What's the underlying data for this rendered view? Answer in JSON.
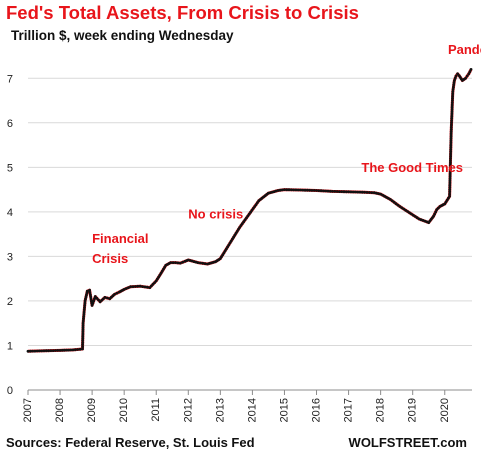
{
  "chart_data": {
    "type": "line",
    "title": "Fed's Total Assets, From Crisis to Crisis",
    "subtitle": "Trillion $, week ending Wednesday",
    "ylim": [
      0,
      7.5
    ],
    "xlim": [
      2007,
      2020.85
    ],
    "y_ticks": [
      "0",
      "1",
      "2",
      "3",
      "4",
      "5",
      "6",
      "7"
    ],
    "x_ticks": [
      "2007",
      "2008",
      "2009",
      "2010",
      "2011",
      "2012",
      "2013",
      "2014",
      "2015",
      "2016",
      "2017",
      "2018",
      "2019",
      "2020"
    ],
    "grid": "horizontal",
    "line_color": "#e8151b",
    "marker_color": "#111111",
    "series": [
      {
        "x": [
          2007.0,
          2007.5,
          2008.0,
          2008.4,
          2008.7,
          2008.72,
          2008.78,
          2008.85,
          2008.92,
          2009.0,
          2009.1,
          2009.25,
          2009.4,
          2009.55,
          2009.7,
          2009.85,
          2010.0,
          2010.2,
          2010.5,
          2010.8,
          2011.0,
          2011.15,
          2011.3,
          2011.45,
          2011.6,
          2011.75,
          2011.9,
          2012.0,
          2012.3,
          2012.6,
          2012.85,
          2013.0,
          2013.3,
          2013.6,
          2013.9,
          2014.2,
          2014.5,
          2014.8,
          2015.0,
          2015.5,
          2016.0,
          2016.5,
          2017.0,
          2017.5,
          2017.8,
          2018.0,
          2018.3,
          2018.6,
          2018.9,
          2019.2,
          2019.5,
          2019.65,
          2019.75,
          2019.85,
          2020.0,
          2020.15,
          2020.2,
          2020.25,
          2020.3,
          2020.35,
          2020.4,
          2020.45,
          2020.55,
          2020.65,
          2020.75,
          2020.82
        ],
        "y": [
          0.87,
          0.88,
          0.89,
          0.9,
          0.92,
          1.5,
          2.0,
          2.22,
          2.24,
          1.9,
          2.1,
          1.98,
          2.08,
          2.05,
          2.15,
          2.2,
          2.26,
          2.32,
          2.33,
          2.3,
          2.45,
          2.62,
          2.8,
          2.86,
          2.86,
          2.85,
          2.89,
          2.92,
          2.86,
          2.83,
          2.88,
          2.95,
          3.3,
          3.65,
          3.95,
          4.25,
          4.42,
          4.48,
          4.5,
          4.49,
          4.48,
          4.46,
          4.45,
          4.44,
          4.43,
          4.4,
          4.28,
          4.12,
          3.98,
          3.84,
          3.76,
          3.9,
          4.05,
          4.12,
          4.18,
          4.35,
          5.8,
          6.7,
          6.95,
          7.05,
          7.1,
          7.06,
          6.95,
          7.0,
          7.1,
          7.2
        ]
      }
    ],
    "annotations": [
      {
        "text": "Financial",
        "x": 2009.0,
        "y": 3.3
      },
      {
        "text": "Crisis",
        "x": 2009.0,
        "y": 2.85
      },
      {
        "text": "No crisis",
        "x": 2012.0,
        "y": 3.85
      },
      {
        "text": "The Good Times",
        "x": 2017.4,
        "y": 4.9
      },
      {
        "text": "Pandemic",
        "x": 2020.1,
        "y": 7.55
      }
    ]
  },
  "footer": {
    "source": "Sources: Federal Reserve, St. Louis Fed",
    "brand": "WOLFSTREET.com"
  }
}
